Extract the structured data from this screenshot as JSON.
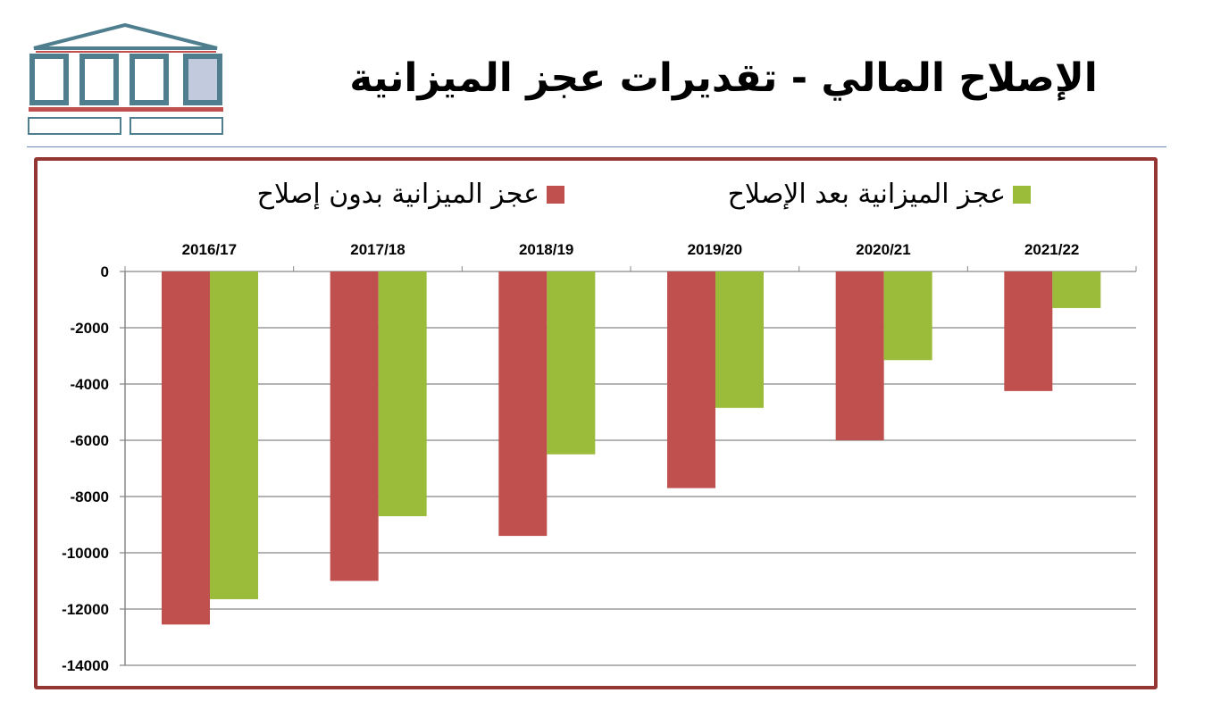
{
  "title": "الإصلاح المالي - تقديرات عجز الميزانية",
  "colors": {
    "without_reform": "#c0504d",
    "with_reform": "#9bbb3b",
    "frame": "#943634",
    "logo": "#4f7f8f",
    "logo_accent": "#c0504d"
  },
  "chart_data": {
    "type": "bar",
    "title": "",
    "categories": [
      "2016/17",
      "2017/18",
      "2018/19",
      "2019/20",
      "2020/21",
      "2021/22"
    ],
    "series": [
      {
        "name": "عجز الميزانية بدون إصلاح",
        "color": "#c0504d",
        "values": [
          -12550,
          -11000,
          -9400,
          -7700,
          -6000,
          -4250
        ]
      },
      {
        "name": "عجز الميزانية بعد الإصلاح",
        "color": "#9bbb3b",
        "values": [
          -11650,
          -8700,
          -6500,
          -4850,
          -3150,
          -1300
        ]
      }
    ],
    "ylim": [
      -14000,
      0
    ],
    "yticks": [
      0,
      -2000,
      -4000,
      -6000,
      -8000,
      -10000,
      -12000,
      -14000
    ],
    "xaxis_position": "top",
    "grid": true,
    "legend_position": "top"
  }
}
